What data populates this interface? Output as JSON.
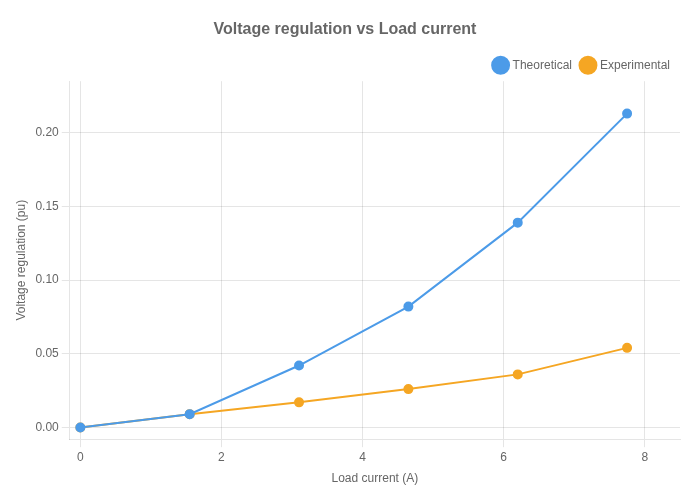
{
  "chart_data": {
    "type": "line",
    "title": "Voltage regulation vs Load current",
    "x_label": "Load current (A)",
    "y_label": "Voltage regulation (pu)",
    "x": [
      0,
      1.55,
      3.1,
      4.65,
      6.2,
      7.75
    ],
    "series": [
      {
        "name": "Theoretical",
        "color": "#4c9be8",
        "values": [
          0.0,
          0.009,
          0.042,
          0.082,
          0.139,
          0.213
        ]
      },
      {
        "name": "Experimental",
        "color": "#f5a623",
        "values": [
          0.0,
          0.009,
          0.017,
          0.026,
          0.036,
          0.054
        ]
      }
    ],
    "xlim": [
      -0.15,
      8.5
    ],
    "ylim": [
      -0.008,
      0.235
    ],
    "xticks": [
      0,
      2,
      4,
      6,
      8
    ],
    "yticks": [
      {
        "value": 0.0,
        "label": "0.00"
      },
      {
        "value": 0.05,
        "label": "0.05"
      },
      {
        "value": 0.1,
        "label": "0.10"
      },
      {
        "value": 0.15,
        "label": "0.15"
      },
      {
        "value": 0.2,
        "label": "0.20"
      }
    ],
    "marker": "circle",
    "grid": true,
    "legend": "upper right"
  }
}
